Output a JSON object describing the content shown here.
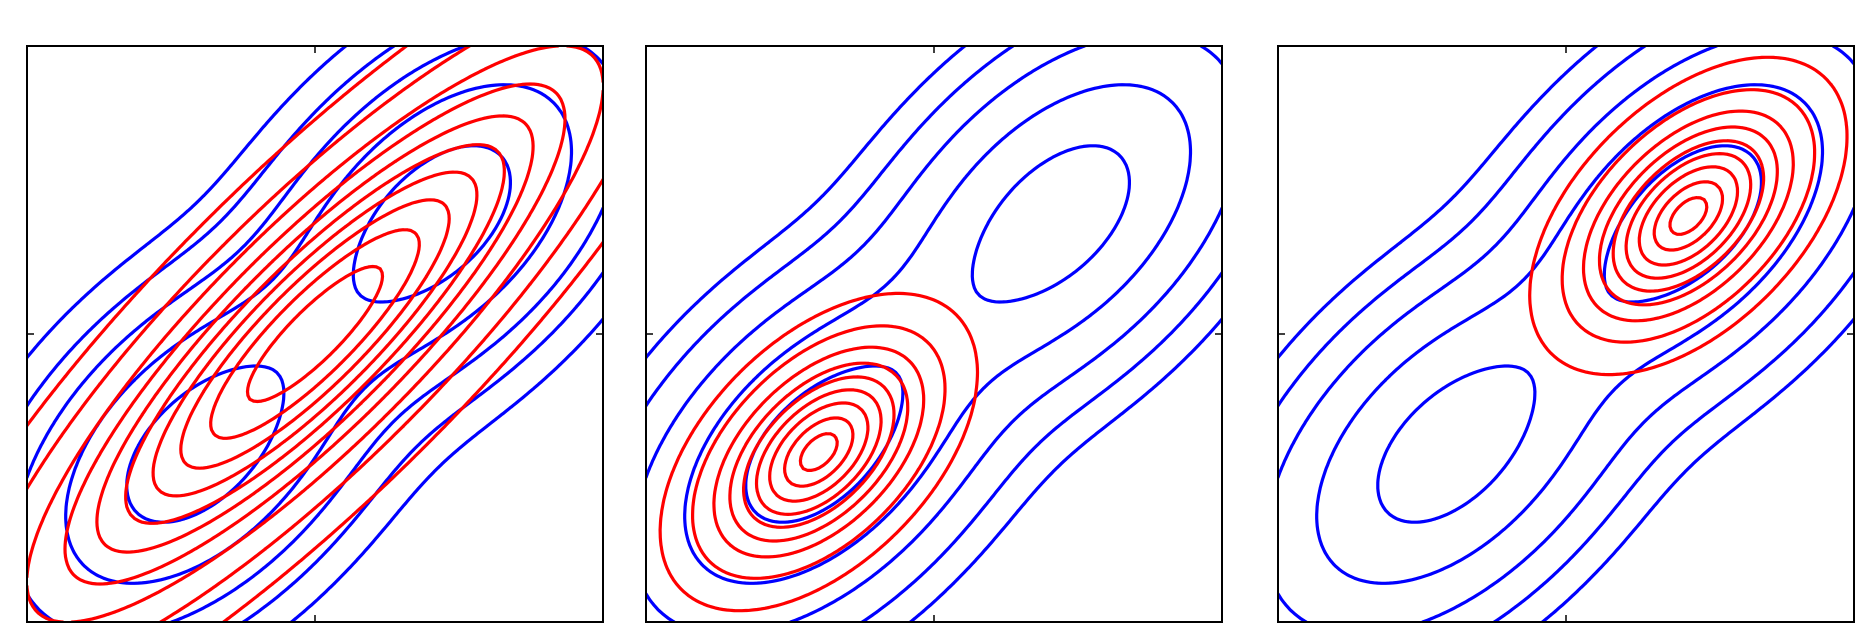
{
  "chart_data": [
    {
      "type": "contour",
      "xlim": [
        -2,
        2
      ],
      "ylim": [
        -2,
        2
      ],
      "xticks": [
        0
      ],
      "yticks": [
        0
      ],
      "tick_labels_shown": false,
      "grid": false,
      "series": [
        {
          "role": "target",
          "color": "#0000ff",
          "components": [
            {
              "weight": 0.5,
              "mean": [
                -0.8,
                -0.8
              ],
              "sd": [
                0.6,
                0.6
              ],
              "rho": 0.5
            },
            {
              "weight": 0.5,
              "mean": [
                0.85,
                0.8
              ],
              "sd": [
                0.6,
                0.6
              ],
              "rho": 0.5
            }
          ],
          "levels": [
            0.35,
            0.15,
            0.05,
            0.015,
            0.004
          ]
        },
        {
          "role": "approximation",
          "color": "#ff0000",
          "components": [
            {
              "weight": 1,
              "mean": [
                0.0,
                0.0
              ],
              "sd": [
                1.15,
                1.15
              ],
              "rho": 0.86
            }
          ],
          "levels": [
            0.04,
            0.12,
            0.22,
            0.32,
            0.42,
            0.52,
            0.62,
            0.72,
            0.82,
            0.92
          ]
        }
      ]
    },
    {
      "type": "contour",
      "xlim": [
        -2,
        2
      ],
      "ylim": [
        -2,
        2
      ],
      "xticks": [
        0
      ],
      "yticks": [
        0
      ],
      "tick_labels_shown": false,
      "grid": false,
      "series": [
        {
          "role": "target",
          "color": "#0000ff",
          "components": [
            {
              "weight": 0.5,
              "mean": [
                -0.8,
                -0.8
              ],
              "sd": [
                0.6,
                0.6
              ],
              "rho": 0.5
            },
            {
              "weight": 0.5,
              "mean": [
                0.85,
                0.8
              ],
              "sd": [
                0.6,
                0.6
              ],
              "rho": 0.5
            }
          ],
          "levels": [
            0.35,
            0.15,
            0.05,
            0.015,
            0.004
          ]
        },
        {
          "role": "approximation",
          "color": "#ff0000",
          "components": [
            {
              "weight": 1,
              "mean": [
                -0.8,
                -0.82
              ],
              "sd": [
                0.45,
                0.45
              ],
              "rho": 0.5
            }
          ],
          "levels": [
            0.05,
            0.15,
            0.27,
            0.39,
            0.51,
            0.63,
            0.75,
            0.87,
            0.96
          ]
        }
      ]
    },
    {
      "type": "contour",
      "xlim": [
        -2,
        2
      ],
      "ylim": [
        -2,
        2
      ],
      "xticks": [
        0
      ],
      "yticks": [
        0
      ],
      "tick_labels_shown": false,
      "grid": false,
      "series": [
        {
          "role": "target",
          "color": "#0000ff",
          "components": [
            {
              "weight": 0.5,
              "mean": [
                -0.8,
                -0.8
              ],
              "sd": [
                0.6,
                0.6
              ],
              "rho": 0.5
            },
            {
              "weight": 0.5,
              "mean": [
                0.85,
                0.8
              ],
              "sd": [
                0.6,
                0.6
              ],
              "rho": 0.5
            }
          ],
          "levels": [
            0.35,
            0.15,
            0.05,
            0.015,
            0.004
          ]
        },
        {
          "role": "approximation",
          "color": "#ff0000",
          "components": [
            {
              "weight": 1,
              "mean": [
                0.85,
                0.82
              ],
              "sd": [
                0.45,
                0.45
              ],
              "rho": 0.5
            }
          ],
          "levels": [
            0.05,
            0.15,
            0.27,
            0.39,
            0.51,
            0.63,
            0.75,
            0.87,
            0.96
          ]
        }
      ]
    }
  ]
}
